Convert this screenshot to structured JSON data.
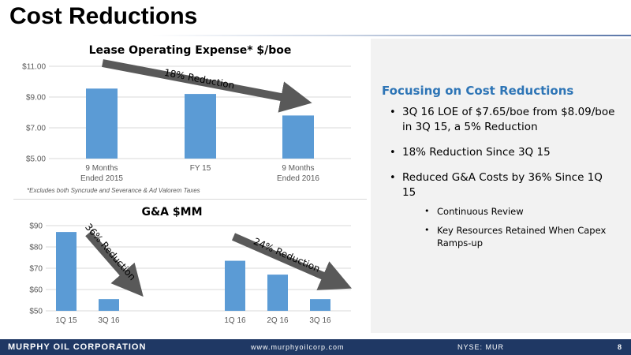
{
  "slide": {
    "title": "Cost Reductions"
  },
  "chart_data": [
    {
      "type": "bar",
      "title": "Lease Operating Expense*  $/boe",
      "categories": [
        [
          "9 Months",
          "Ended 2015"
        ],
        [
          "FY 15"
        ],
        [
          "9 Months",
          "Ended 2016"
        ]
      ],
      "values": [
        9.55,
        9.2,
        7.8
      ],
      "ylim": [
        5,
        11
      ],
      "yticks": [
        5,
        7,
        9,
        11
      ],
      "ytick_labels": [
        "$5.00",
        "$7.00",
        "$9.00",
        "$11.00"
      ],
      "bar_color": "#5b9bd5",
      "annotation": "18% Reduction",
      "footnote": "*Excludes both Syncrude and Severance & Ad Valorem Taxes"
    },
    {
      "type": "bar",
      "title": "G&A $MM",
      "categories": [
        "1Q 15",
        "3Q 16",
        "",
        "1Q 16",
        "2Q 16",
        "3Q 16"
      ],
      "values": [
        87,
        55.5,
        null,
        73.5,
        67,
        55.5
      ],
      "ylim": [
        50,
        90
      ],
      "yticks": [
        50,
        60,
        70,
        80,
        90
      ],
      "ytick_labels": [
        "$50",
        "$60",
        "$70",
        "$80",
        "$90"
      ],
      "bar_color": "#5b9bd5",
      "annotations": [
        "36% Reduction",
        "24% Reduction"
      ]
    }
  ],
  "colors": {
    "accent": "#2e75b6",
    "arrow": "#595959",
    "footer_bg": "#1f3864"
  },
  "right_panel": {
    "heading": "Focusing on Cost Reductions",
    "bullets": [
      "3Q 16 LOE of $7.65/boe from $8.09/boe in 3Q 15, a 5% Reduction",
      "18% Reduction Since 3Q 15",
      "Reduced G&A Costs by 36% Since 1Q 15"
    ],
    "sub_bullets": [
      "Continuous Review",
      "Key Resources Retained When Capex Ramps-up"
    ]
  },
  "footer": {
    "company": "MURPHY OIL CORPORATION",
    "url": "www.murphyoilcorp.com",
    "ticker": "NYSE: MUR",
    "page": "8"
  }
}
